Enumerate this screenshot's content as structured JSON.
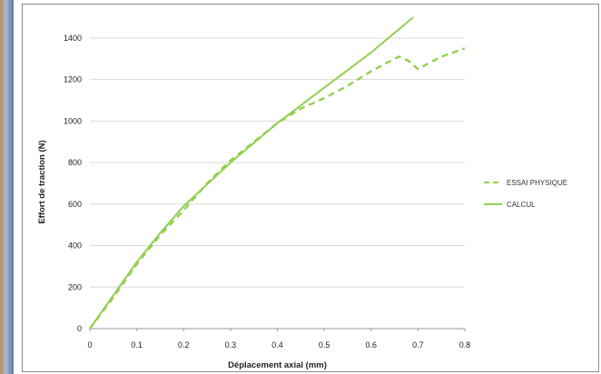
{
  "chart_data": {
    "type": "line",
    "xlabel": "Déplacement axial (mm)",
    "ylabel": "Effort de traction (N)",
    "xlim": [
      0,
      0.8
    ],
    "ylim": [
      0,
      1500
    ],
    "x_ticks": [
      "0",
      "0.1",
      "0.2",
      "0.3",
      "0.4",
      "0.5",
      "0.6",
      "0.7",
      "0.8"
    ],
    "y_ticks": [
      "0",
      "200",
      "400",
      "600",
      "800",
      "1000",
      "1200",
      "1400"
    ],
    "grid": "horizontal",
    "legend_position": "right",
    "series_color": "#92d050",
    "series": [
      {
        "name": "ESSAI PHYSIQUE",
        "style": "dashed",
        "points": [
          [
            0,
            0
          ],
          [
            0.05,
            150
          ],
          [
            0.1,
            310
          ],
          [
            0.15,
            450
          ],
          [
            0.2,
            570
          ],
          [
            0.25,
            700
          ],
          [
            0.3,
            810
          ],
          [
            0.35,
            900
          ],
          [
            0.4,
            990
          ],
          [
            0.45,
            1060
          ],
          [
            0.5,
            1110
          ],
          [
            0.55,
            1170
          ],
          [
            0.6,
            1240
          ],
          [
            0.65,
            1300
          ],
          [
            0.66,
            1310
          ],
          [
            0.68,
            1290
          ],
          [
            0.7,
            1250
          ],
          [
            0.72,
            1275
          ],
          [
            0.75,
            1310
          ],
          [
            0.8,
            1350
          ]
        ]
      },
      {
        "name": "CALCUL",
        "style": "solid",
        "points": [
          [
            0,
            0
          ],
          [
            0.05,
            160
          ],
          [
            0.1,
            320
          ],
          [
            0.15,
            460
          ],
          [
            0.2,
            590
          ],
          [
            0.3,
            800
          ],
          [
            0.4,
            990
          ],
          [
            0.5,
            1160
          ],
          [
            0.6,
            1330
          ],
          [
            0.69,
            1500
          ]
        ]
      }
    ]
  }
}
